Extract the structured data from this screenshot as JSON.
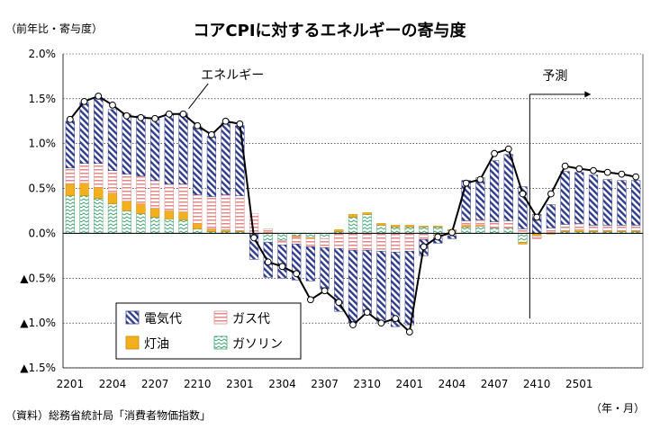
{
  "chart_data": {
    "type": "bar",
    "stacked": true,
    "title": "コアCPIに対するエネルギーの寄与度",
    "unit_label": "（前年比・寄与度）",
    "source": "（資料）総務省統計局「消費者物価指数」",
    "x_unit": "（年・月）",
    "ylim": [
      -1.5,
      2.0
    ],
    "y_ticks": [
      2.0,
      1.5,
      1.0,
      0.5,
      0.0,
      -0.5,
      -1.0,
      -1.5
    ],
    "y_tick_labels": [
      "2.0%",
      "1.5%",
      "1.0%",
      "0.5%",
      "0.0%",
      "▲0.5%",
      "▲1.0%",
      "▲1.5%"
    ],
    "grid": true,
    "legend_position": "bottom-left",
    "categories": [
      "2201",
      "2202",
      "2203",
      "2204",
      "2205",
      "2206",
      "2207",
      "2208",
      "2209",
      "2210",
      "2211",
      "2212",
      "2301",
      "2302",
      "2303",
      "2304",
      "2305",
      "2306",
      "2307",
      "2308",
      "2309",
      "2310",
      "2311",
      "2312",
      "2401",
      "2402",
      "2403",
      "2404",
      "2405",
      "2406",
      "2407",
      "2408",
      "2409",
      "2410",
      "2411",
      "2412",
      "2501",
      "2502",
      "2503",
      "2504",
      "2505"
    ],
    "x_tick_labels": [
      "2201",
      "2204",
      "2207",
      "2210",
      "2301",
      "2304",
      "2307",
      "2310",
      "2401",
      "2404",
      "2407",
      "2410",
      "2501"
    ],
    "series": [
      {
        "name": "電気代",
        "color": "#2f3b8c",
        "values": [
          0.52,
          0.68,
          0.72,
          0.68,
          0.67,
          0.67,
          0.69,
          0.78,
          0.79,
          0.76,
          0.67,
          0.8,
          0.78,
          -0.28,
          -0.39,
          -0.37,
          -0.4,
          -0.38,
          -0.46,
          -0.7,
          -0.81,
          -0.72,
          -0.8,
          -0.83,
          -0.82,
          -0.18,
          -0.06,
          -0.03,
          0.45,
          0.47,
          0.68,
          0.74,
          0.47,
          0.21,
          0.26,
          0.59,
          0.57,
          0.56,
          0.51,
          0.5,
          0.5
        ]
      },
      {
        "name": "ガス代",
        "color": "#e08a8a",
        "values": [
          0.18,
          0.22,
          0.27,
          0.25,
          0.3,
          0.31,
          0.31,
          0.3,
          0.31,
          0.32,
          0.36,
          0.39,
          0.39,
          0.22,
          0.04,
          -0.05,
          -0.08,
          -0.09,
          -0.1,
          -0.17,
          -0.19,
          -0.19,
          -0.2,
          -0.21,
          -0.2,
          -0.07,
          -0.05,
          -0.03,
          0.05,
          0.06,
          0.07,
          0.08,
          0.05,
          -0.03,
          0.05,
          0.07,
          0.07,
          0.06,
          0.06,
          0.06,
          0.06
        ]
      },
      {
        "name": "灯油",
        "color": "#f2b01e",
        "values": [
          0.13,
          0.14,
          0.12,
          0.12,
          0.11,
          0.11,
          0.1,
          0.09,
          0.09,
          0.06,
          0.03,
          0.02,
          0.01,
          0.0,
          0.01,
          0.0,
          -0.01,
          -0.01,
          0.0,
          0.02,
          0.03,
          0.02,
          0.02,
          0.02,
          0.02,
          0.01,
          0.01,
          0.01,
          0.02,
          0.01,
          0.0,
          0.0,
          -0.02,
          -0.02,
          -0.01,
          0.01,
          0.02,
          0.01,
          0.01,
          0.01,
          0.01
        ]
      },
      {
        "name": "ガソリン",
        "color": "#3fa373",
        "values": [
          0.42,
          0.42,
          0.39,
          0.33,
          0.25,
          0.22,
          0.18,
          0.16,
          0.15,
          0.05,
          0.02,
          0.02,
          0.02,
          -0.01,
          -0.1,
          -0.08,
          -0.03,
          -0.05,
          -0.06,
          0.02,
          0.18,
          0.21,
          0.09,
          0.07,
          0.07,
          0.07,
          0.07,
          0.03,
          0.07,
          0.08,
          0.06,
          0.06,
          -0.1,
          -0.01,
          0.01,
          0.02,
          0.02,
          0.02,
          0.02,
          0.02,
          0.02
        ]
      }
    ],
    "total_series": {
      "name": "エネルギー",
      "values": [
        1.27,
        1.47,
        1.53,
        1.43,
        1.31,
        1.29,
        1.28,
        1.33,
        1.33,
        1.2,
        1.1,
        1.25,
        1.22,
        -0.05,
        -0.32,
        -0.37,
        -0.45,
        -0.74,
        -0.64,
        -0.77,
        -1.02,
        -0.88,
        -1.0,
        -0.95,
        -1.1,
        -0.15,
        -0.04,
        0.01,
        0.56,
        0.6,
        0.89,
        0.94,
        0.44,
        0.18,
        0.44,
        0.75,
        0.72,
        0.7,
        0.68,
        0.66,
        0.63
      ]
    },
    "annotations": {
      "total_label": "エネルギー",
      "forecast_label": "予測",
      "forecast_start": "2410"
    }
  }
}
